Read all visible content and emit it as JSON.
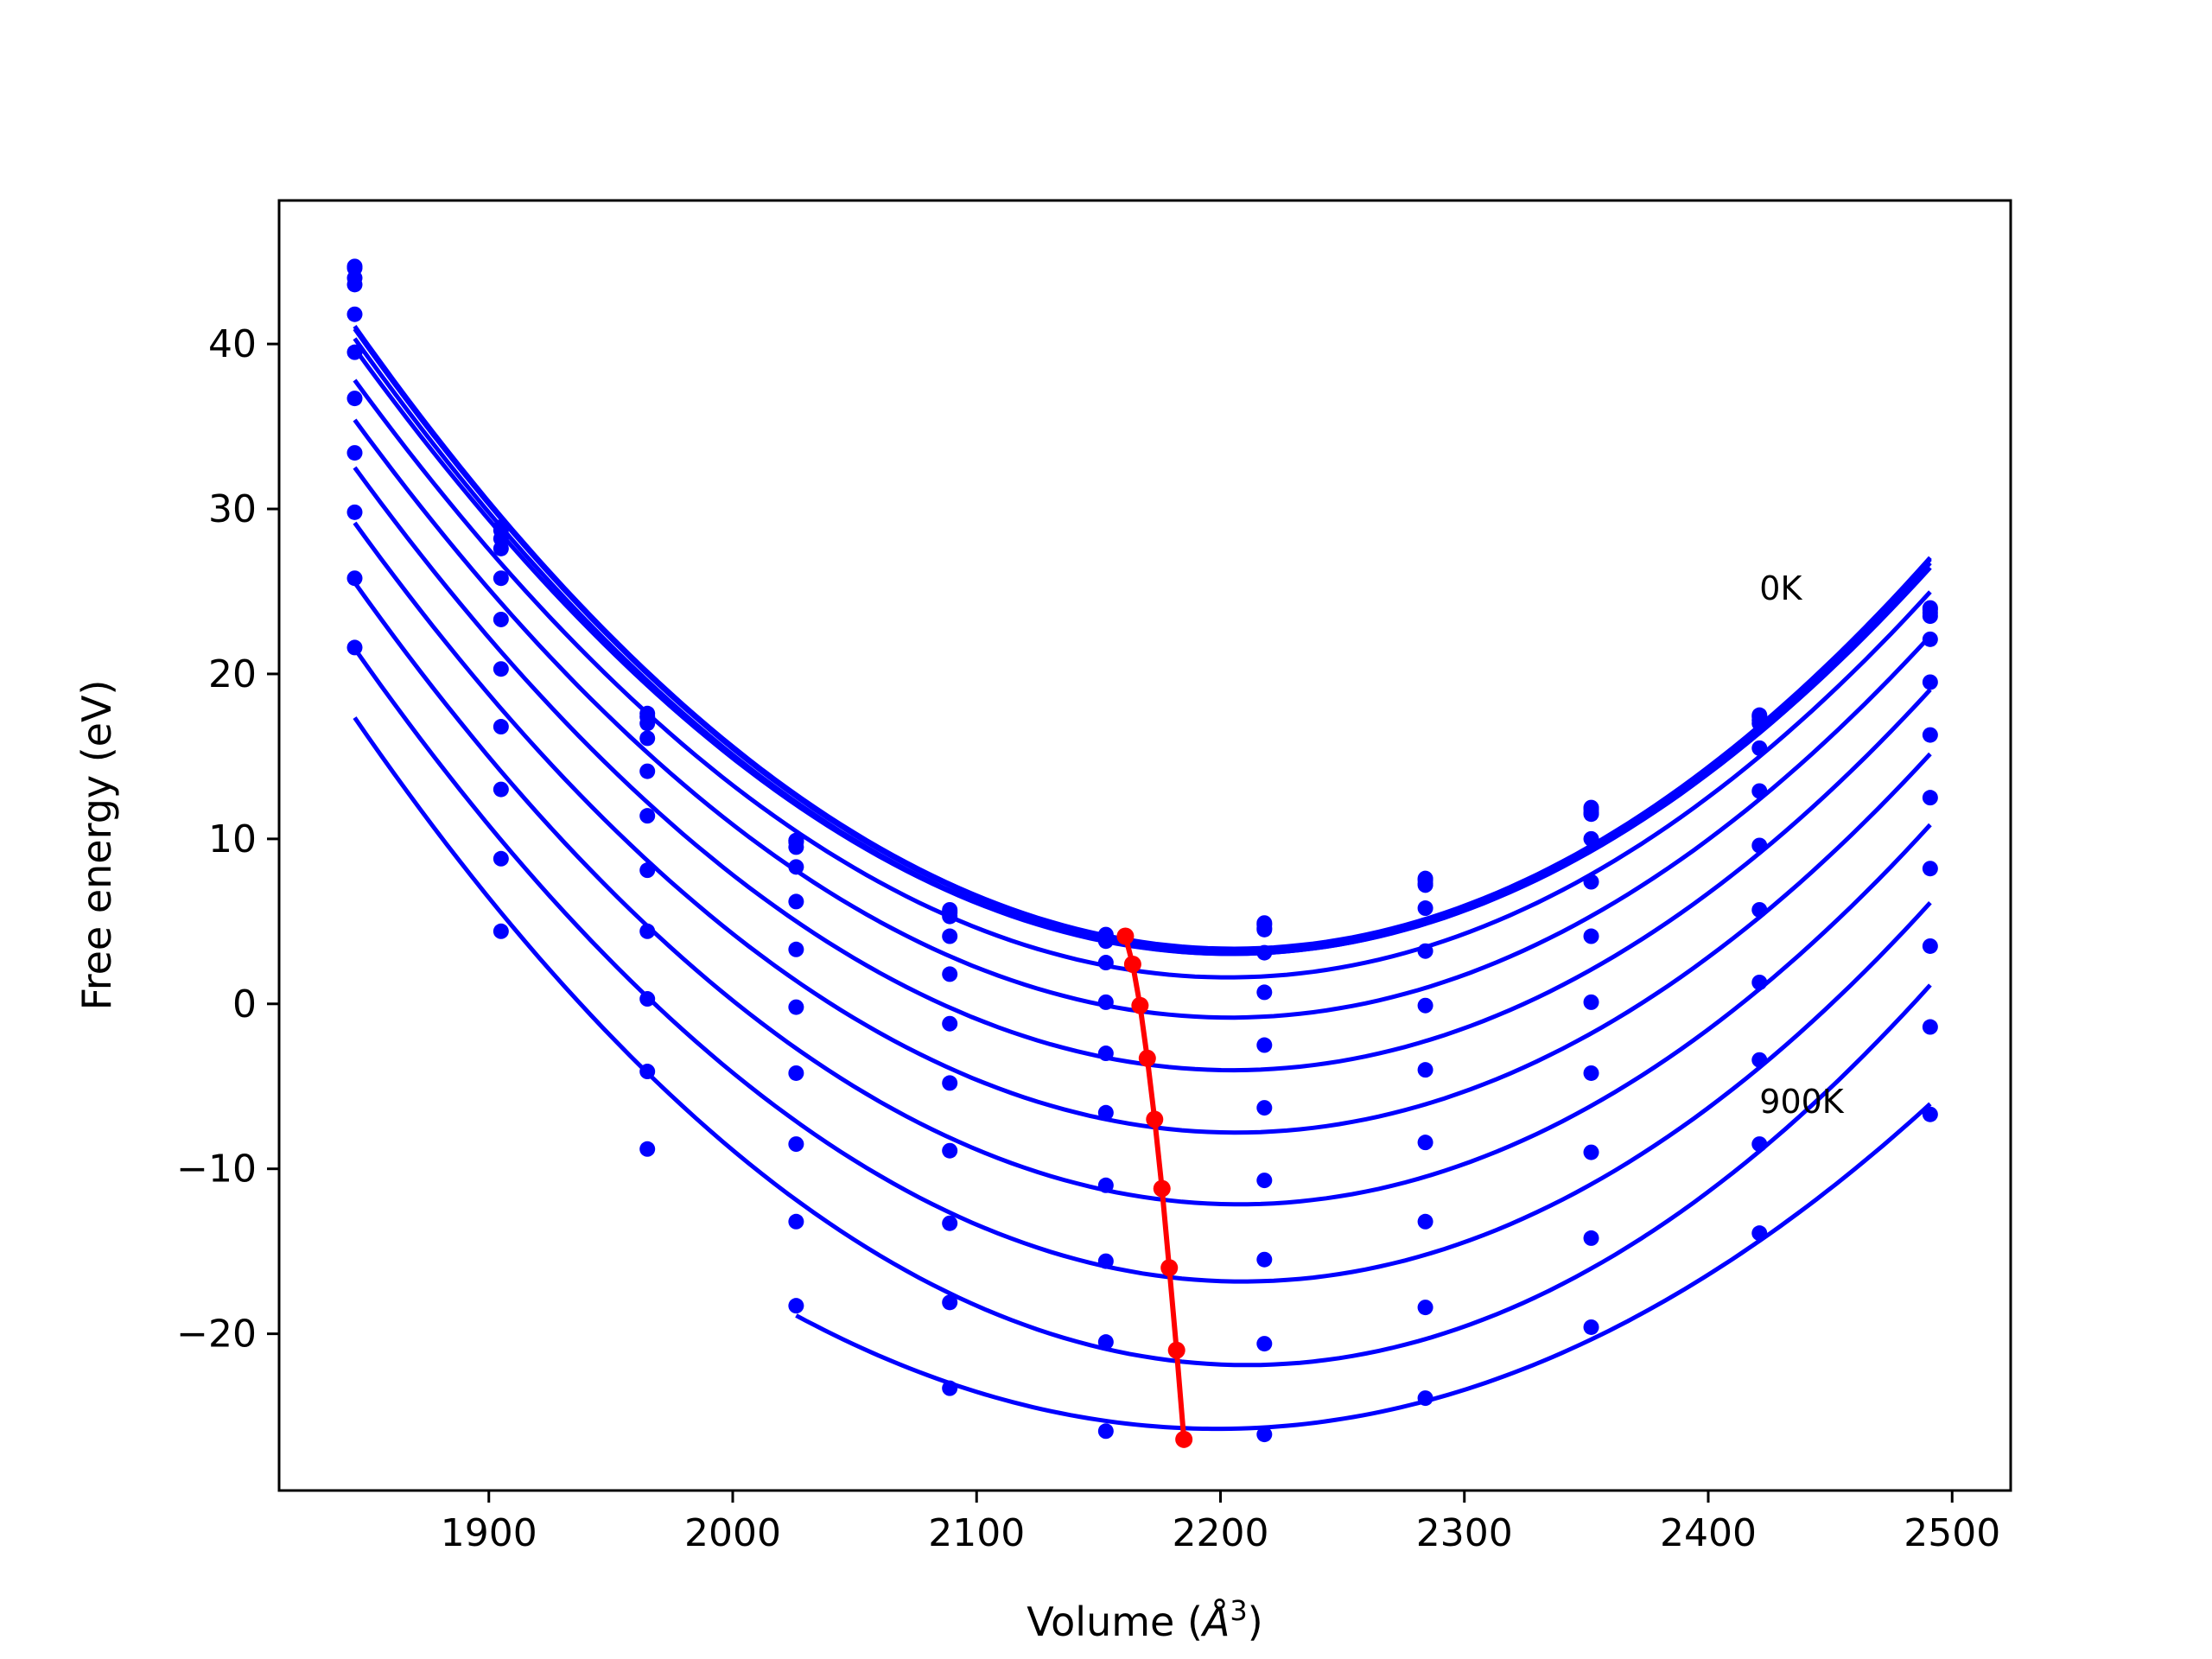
{
  "chart_data": {
    "type": "line",
    "title": "",
    "xlabel": "Volume",
    "xlabel_unit_base": "Å",
    "xlabel_unit_exp": "3",
    "ylabel": "Free energy (eV)",
    "xlim": [
      1814,
      2524
    ],
    "ylim": [
      -29.5,
      48.7
    ],
    "xticks": [
      1900,
      2000,
      2100,
      2200,
      2300,
      2400,
      2500
    ],
    "yticks": [
      -20,
      -10,
      0,
      10,
      20,
      30,
      40
    ],
    "ytick_labels": [
      "−20",
      "−10",
      "0",
      "10",
      "20",
      "30",
      "40"
    ],
    "grid": false,
    "legend": "none",
    "annotations": [
      {
        "text": "0K",
        "x": 2421,
        "y": 24.5
      },
      {
        "text": "900K",
        "x": 2421,
        "y": -6.6
      }
    ],
    "fit_color": "#0000ff",
    "min_color": "#ff0000",
    "x": [
      1845,
      1905,
      1965,
      2026,
      2089,
      2153,
      2218,
      2284,
      2352,
      2421,
      2491
    ],
    "series": [
      {
        "values": [
          44.7,
          28.9,
          17.6,
          9.9,
          5.7,
          4.2,
          4.9,
          7.6,
          11.9,
          17.5,
          24.0
        ]
      },
      {
        "values": [
          44.6,
          28.7,
          17.4,
          9.8,
          5.6,
          4.1,
          4.8,
          7.5,
          11.8,
          17.4,
          23.9
        ]
      },
      {
        "values": [
          44.0,
          28.2,
          17.0,
          9.5,
          5.3,
          3.9,
          4.6,
          7.3,
          11.6,
          17.2,
          23.7
        ]
      },
      {
        "values": [
          43.6,
          27.6,
          16.1,
          9.9,
          5.5,
          3.8,
          4.5,
          7.2,
          11.5,
          17.0,
          23.5
        ]
      },
      {
        "values": [
          41.8,
          25.8,
          14.1,
          8.3,
          4.1,
          2.5,
          3.1,
          5.8,
          10.0,
          15.5,
          22.1
        ]
      },
      {
        "values": [
          39.5,
          23.3,
          11.4,
          6.2,
          1.8,
          0.1,
          0.7,
          3.2,
          7.4,
          12.9,
          19.5
        ]
      },
      {
        "values": [
          36.7,
          20.3,
          8.1,
          3.3,
          -1.2,
          -3.0,
          -2.5,
          -0.1,
          4.1,
          9.6,
          16.3
        ]
      },
      {
        "values": [
          33.4,
          16.8,
          4.4,
          -0.2,
          -4.8,
          -6.6,
          -6.3,
          -4.0,
          0.1,
          5.7,
          12.5
        ]
      },
      {
        "values": [
          29.8,
          13.0,
          0.3,
          -4.2,
          -8.9,
          -11.0,
          -10.7,
          -8.4,
          -4.2,
          1.3,
          8.2
        ]
      },
      {
        "values": [
          25.8,
          8.8,
          -4.1,
          -8.5,
          -13.3,
          -15.6,
          -15.5,
          -13.2,
          -9.0,
          -3.4,
          3.5
        ]
      },
      {
        "values": [
          21.6,
          4.4,
          -8.8,
          -13.2,
          -18.1,
          -20.5,
          -20.6,
          -18.4,
          -14.2,
          -8.5,
          -1.4
        ]
      },
      {
        "values": [
          null,
          null,
          null,
          -18.3,
          -23.3,
          -25.9,
          -26.1,
          -23.9,
          -19.6,
          -13.9,
          -6.7
        ]
      }
    ],
    "minima": {
      "x": [
        2161,
        2164,
        2167,
        2170,
        2173,
        2176,
        2179,
        2182,
        2185
      ],
      "y": [
        4.1,
        2.4,
        -0.1,
        -3.3,
        -7.0,
        -11.2,
        -16.0,
        -21.0,
        -26.4
      ]
    }
  }
}
